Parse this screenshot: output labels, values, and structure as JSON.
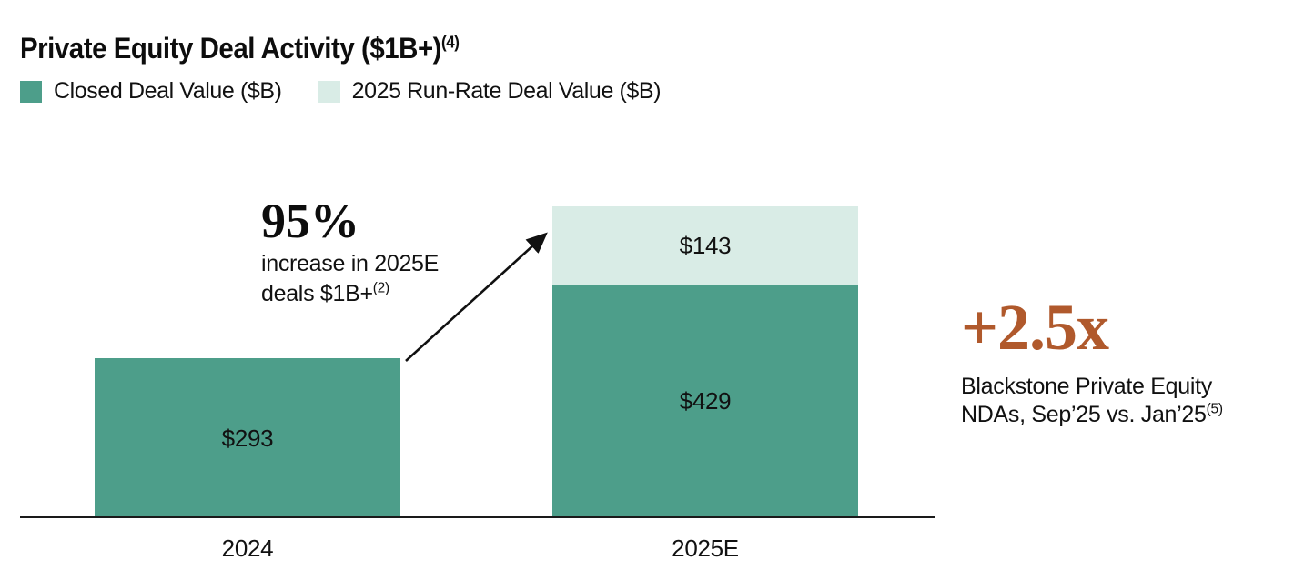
{
  "title": {
    "text": "Private Equity Deal Activity ($1B+)",
    "superscript": "(4)"
  },
  "legend": {
    "items": [
      {
        "label": "Closed Deal Value ($B)",
        "color": "#4D9E8A"
      },
      {
        "label": "2025 Run-Rate Deal Value ($B)",
        "color": "#D9ECE6"
      }
    ]
  },
  "chart_data": {
    "type": "bar",
    "stacked": true,
    "categories": [
      "2024",
      "2025E"
    ],
    "series": [
      {
        "name": "Closed Deal Value ($B)",
        "color": "#4D9E8A",
        "values": [
          293,
          429
        ],
        "labels": [
          "$293",
          "$429"
        ]
      },
      {
        "name": "2025 Run-Rate Deal Value ($B)",
        "color": "#D9ECE6",
        "values": [
          null,
          143
        ],
        "labels": [
          null,
          "$143"
        ]
      }
    ],
    "totals": [
      293,
      572
    ],
    "unit": "$B",
    "ylim": [
      0,
      600
    ],
    "grid": false,
    "legend_position": "top-left",
    "annotation": {
      "headline": "95%",
      "line1": "increase in 2025E",
      "line2": "deals $1B+",
      "superscript": "(2)"
    }
  },
  "stat": {
    "value": "+2.5x",
    "color": "#B0592C",
    "line1": "Blackstone Private Equity",
    "line2": "NDAs, Sep’25 vs. Jan’25",
    "superscript": "(5)"
  },
  "colors": {
    "closed_deal": "#4D9E8A",
    "run_rate": "#D9ECE6",
    "accent": "#B0592C",
    "axis": "#1A1A1A"
  }
}
